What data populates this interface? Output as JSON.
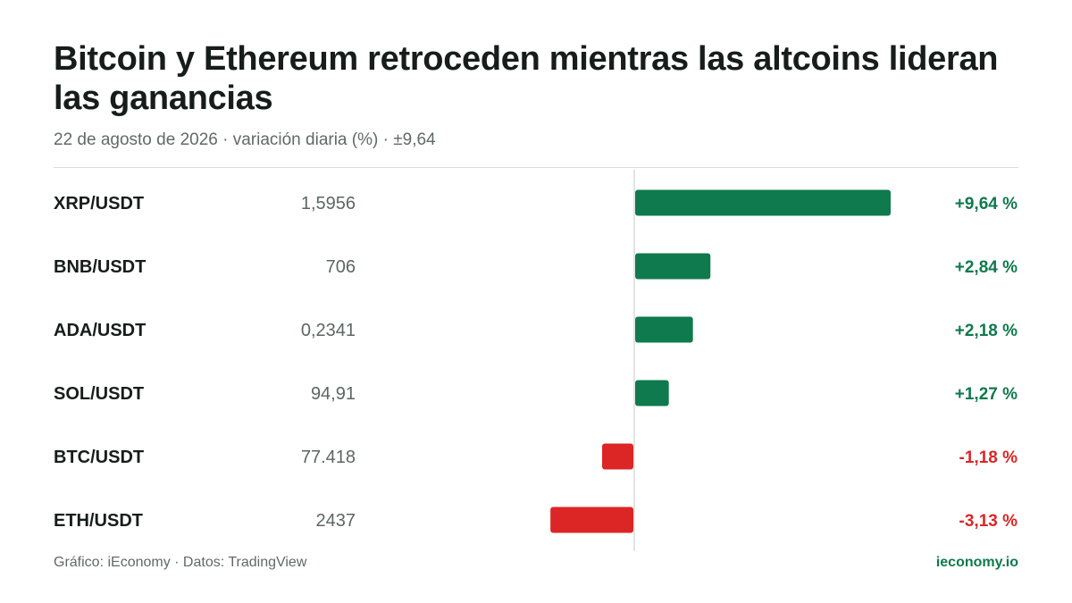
{
  "header": {
    "title": "Bitcoin y Ethereum retroceden mientras las altcoins lideran las ganancias",
    "subtitle": "22 de agosto de 2026 · variación diaria (%) · ±9,64"
  },
  "footer": {
    "source": "Gráfico: iEconomy · Datos: TradingView",
    "brand": "ieconomy.io"
  },
  "colors": {
    "positive": "#0f7a4d",
    "negative": "#dc2626",
    "axis": "#d9dcdb"
  },
  "chart_data": {
    "type": "bar",
    "orientation": "horizontal",
    "categories": [
      "XRP/USDT",
      "BNB/USDT",
      "ADA/USDT",
      "SOL/USDT",
      "BTC/USDT",
      "ETH/USDT"
    ],
    "prices": [
      "1,5956",
      "706",
      "0,2341",
      "94,91",
      "77.418",
      "2437"
    ],
    "values": [
      9.64,
      2.84,
      2.18,
      1.27,
      -1.18,
      -3.13
    ],
    "value_labels": [
      "+9,64 %",
      "+2,84 %",
      "+2,18 %",
      "+1,27 %",
      "-1,18 %",
      "-3,13 %"
    ],
    "xlim": [
      -9.64,
      9.64
    ],
    "grid": false,
    "legend": "none"
  }
}
